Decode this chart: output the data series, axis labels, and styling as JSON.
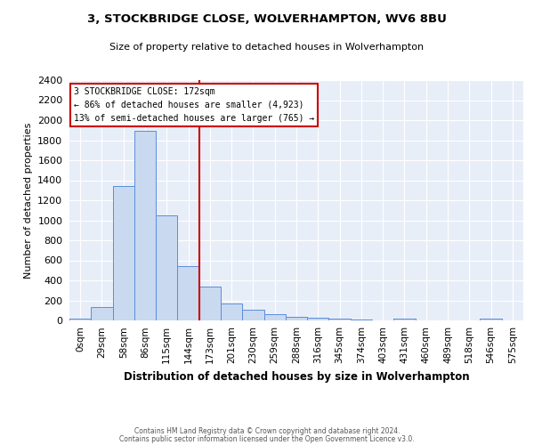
{
  "title1": "3, STOCKBRIDGE CLOSE, WOLVERHAMPTON, WV6 8BU",
  "title2": "Size of property relative to detached houses in Wolverhampton",
  "xlabel": "Distribution of detached houses by size in Wolverhampton",
  "ylabel": "Number of detached properties",
  "footer1": "Contains HM Land Registry data © Crown copyright and database right 2024.",
  "footer2": "Contains public sector information licensed under the Open Government Licence v3.0.",
  "bin_labels": [
    "0sqm",
    "29sqm",
    "58sqm",
    "86sqm",
    "115sqm",
    "144sqm",
    "173sqm",
    "201sqm",
    "230sqm",
    "259sqm",
    "288sqm",
    "316sqm",
    "345sqm",
    "374sqm",
    "403sqm",
    "431sqm",
    "460sqm",
    "489sqm",
    "518sqm",
    "546sqm",
    "575sqm"
  ],
  "bar_values": [
    15,
    130,
    1340,
    1890,
    1050,
    545,
    340,
    165,
    110,
    60,
    35,
    25,
    18,
    10,
    0,
    20,
    0,
    0,
    0,
    15,
    0
  ],
  "bar_color": "#c9d9f0",
  "bar_edge_color": "#5b8dd9",
  "bg_color": "#e8eef8",
  "grid_color": "#ffffff",
  "vline_color": "#cc0000",
  "annotation_text": "3 STOCKBRIDGE CLOSE: 172sqm\n← 86% of detached houses are smaller (4,923)\n13% of semi-detached houses are larger (765) →",
  "annotation_box_color": "#ffffff",
  "annotation_box_edge": "#cc0000",
  "ylim": [
    0,
    2400
  ],
  "yticks": [
    0,
    200,
    400,
    600,
    800,
    1000,
    1200,
    1400,
    1600,
    1800,
    2000,
    2200,
    2400
  ],
  "vline_x": 5.5
}
